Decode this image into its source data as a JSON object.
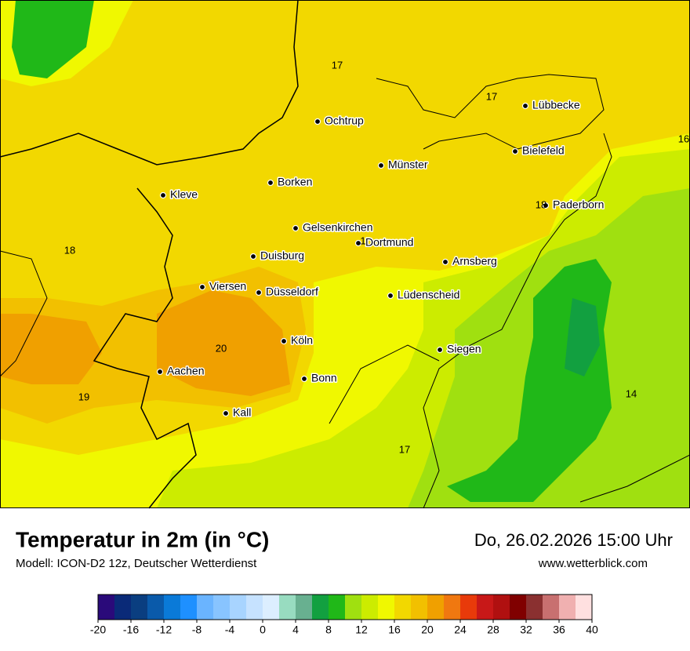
{
  "header": {
    "title": "Temperatur in 2m (in °C)",
    "subtitle": "Modell: ICON-D2 12z, Deutscher Wetterdienst",
    "datetime": "Do, 26.02.2026 15:00 Uhr",
    "website": "www.wetterblick.com"
  },
  "map": {
    "cities": [
      "Ochtrup",
      "Lübbecke",
      "Bielefeld",
      "Münster",
      "Borken",
      "Kleve",
      "Paderborn",
      "Gelsenkirchen",
      "Dortmund",
      "Duisburg",
      "Arnsberg",
      "Viersen",
      "Düsseldorf",
      "Lüdenscheid",
      "Köln",
      "Siegen",
      "Aachen",
      "Bonn",
      "Kall"
    ],
    "temperature_labels": [
      "17",
      "17",
      "16",
      "18",
      "18",
      "20",
      "19",
      "14",
      "17",
      "1"
    ]
  },
  "legend": {
    "range": [
      -20,
      40
    ],
    "ticks": [
      -20,
      -16,
      -12,
      -8,
      -4,
      0,
      4,
      8,
      12,
      16,
      20,
      24,
      28,
      32,
      36,
      40
    ],
    "colors": [
      "#2a0a7a",
      "#0a2a78",
      "#0a3e80",
      "#0a5aaa",
      "#0a7ad8",
      "#1e90ff",
      "#6ab4ff",
      "#88c4ff",
      "#a8d4ff",
      "#c6e2ff",
      "#dceeff",
      "#98dcc0",
      "#68b090",
      "#12a040",
      "#20b818",
      "#a0e010",
      "#ccec00",
      "#f0f800",
      "#f2d800",
      "#f2c000",
      "#f0a000",
      "#f07810",
      "#e83a0a",
      "#c81818",
      "#b01010",
      "#800000",
      "#8a3030",
      "#c87070",
      "#f0b0b0",
      "#ffe0e0"
    ]
  }
}
